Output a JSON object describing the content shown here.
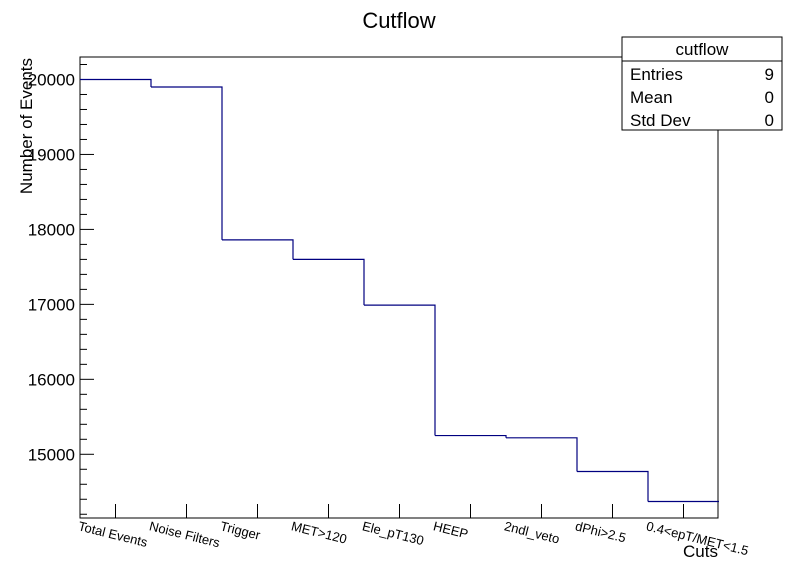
{
  "chart_data": {
    "type": "bar",
    "title": "Cutflow",
    "xlabel": "Cuts",
    "ylabel": "Number of Events",
    "categories": [
      "Total Events",
      "Noise Filters",
      "Trigger",
      "MET>120",
      "Ele_pT130",
      "HEEP",
      "2ndl_veto",
      "dPhi>2.5",
      "0.4<epT/MET<1.5"
    ],
    "values": [
      20000,
      19900,
      17860,
      17600,
      16990,
      15250,
      15220,
      14770,
      14370
    ],
    "ylim": [
      14150,
      20300
    ],
    "yticks": [
      15000,
      16000,
      17000,
      18000,
      19000,
      20000
    ],
    "ytick_labels": [
      "15000",
      "16000",
      "17000",
      "18000",
      "19000",
      "20000"
    ],
    "line_color": "#000080",
    "grid": false,
    "stats_box": {
      "name": "cutflow",
      "rows": [
        {
          "label": "Entries",
          "value": "9"
        },
        {
          "label": "Mean",
          "value": "0"
        },
        {
          "label": "Std Dev",
          "value": "0"
        }
      ],
      "placement": "top-right"
    }
  }
}
